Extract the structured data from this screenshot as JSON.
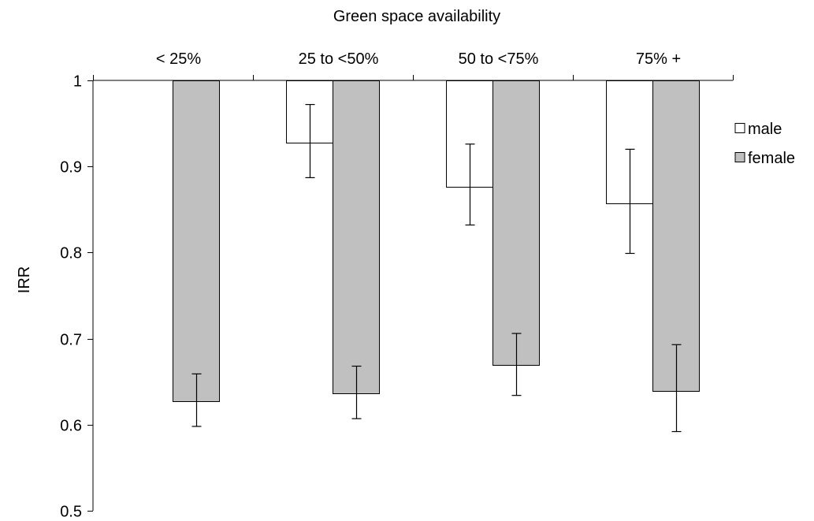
{
  "chart_data": {
    "type": "bar",
    "title": "Green space availability",
    "xlabel": "",
    "ylabel": "IRR",
    "ylim": [
      0.5,
      1.0
    ],
    "yticks": [
      "0.5",
      "0.6",
      "0.7",
      "0.8",
      "0.9",
      "1"
    ],
    "baseline": 1.0,
    "categories": [
      "< 25%",
      "25 to <50%",
      "50 to <75%",
      "75% +"
    ],
    "legend_position": "right",
    "grid": false,
    "series": [
      {
        "name": "male",
        "color": "#ffffff",
        "values": [
          1.0,
          0.928,
          0.876,
          0.857
        ],
        "ci_low": [
          1.0,
          0.887,
          0.832,
          0.799
        ],
        "ci_high": [
          1.0,
          0.972,
          0.926,
          0.92
        ]
      },
      {
        "name": "female",
        "color": "#c0c0c0",
        "values": [
          0.627,
          0.636,
          0.669,
          0.639
        ],
        "ci_low": [
          0.598,
          0.607,
          0.634,
          0.592
        ],
        "ci_high": [
          0.659,
          0.668,
          0.706,
          0.693
        ]
      }
    ]
  }
}
